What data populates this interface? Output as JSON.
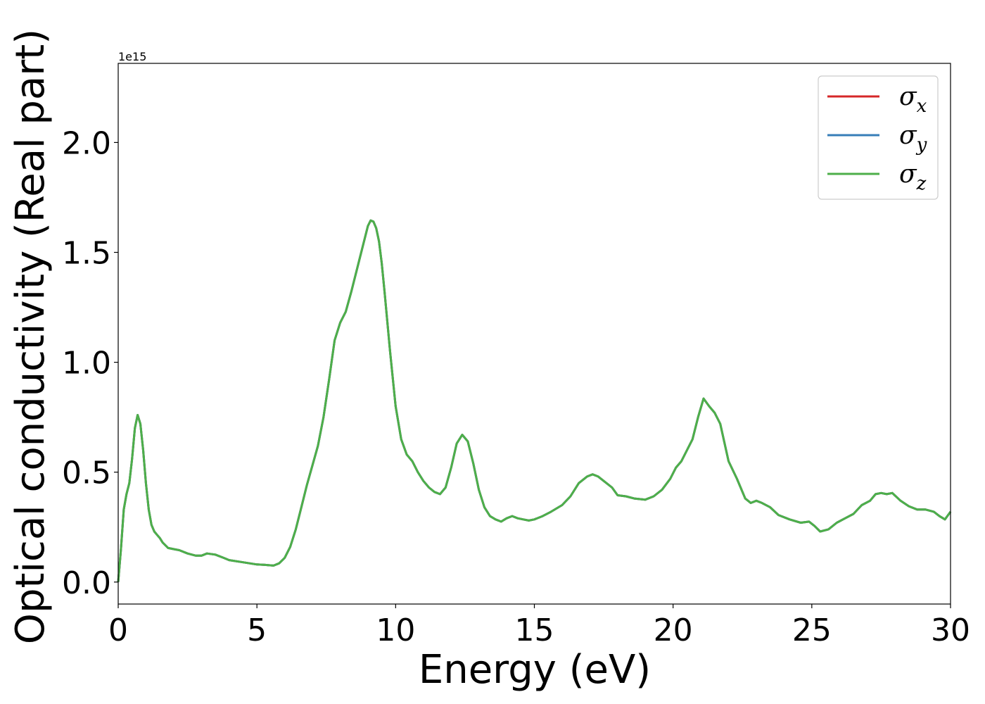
{
  "chart_data": {
    "type": "line",
    "xlabel": "Energy (eV)",
    "ylabel": "Optical conductivity (Real part)",
    "y_offset_label": "1e15",
    "xlim": [
      0,
      30
    ],
    "ylim": [
      -0.1,
      2.36
    ],
    "x_ticks": [
      0,
      5,
      10,
      15,
      20,
      25,
      30
    ],
    "x_tick_labels": [
      "0",
      "5",
      "10",
      "15",
      "20",
      "25",
      "30"
    ],
    "y_ticks": [
      0.0,
      0.5,
      1.0,
      1.5,
      2.0
    ],
    "y_tick_labels": [
      "0.0",
      "0.5",
      "1.0",
      "1.5",
      "2.0"
    ],
    "grid": false,
    "legend_position": "top-right",
    "x": [
      0,
      0.1,
      0.2,
      0.3,
      0.4,
      0.5,
      0.6,
      0.7,
      0.8,
      0.9,
      1.0,
      1.1,
      1.2,
      1.3,
      1.4,
      1.5,
      1.6,
      1.8,
      2.0,
      2.2,
      2.5,
      2.8,
      3.0,
      3.2,
      3.5,
      3.8,
      4.0,
      4.5,
      5.0,
      5.3,
      5.6,
      5.8,
      6.0,
      6.2,
      6.4,
      6.6,
      6.8,
      7.0,
      7.2,
      7.4,
      7.6,
      7.8,
      8.0,
      8.2,
      8.4,
      8.6,
      8.8,
      9.0,
      9.1,
      9.2,
      9.3,
      9.4,
      9.5,
      9.6,
      9.8,
      10.0,
      10.2,
      10.4,
      10.6,
      10.8,
      11.0,
      11.2,
      11.4,
      11.6,
      11.8,
      12.0,
      12.2,
      12.4,
      12.6,
      12.8,
      13.0,
      13.2,
      13.4,
      13.6,
      13.8,
      14.0,
      14.2,
      14.4,
      14.6,
      14.8,
      15.0,
      15.3,
      15.6,
      16.0,
      16.3,
      16.6,
      16.9,
      17.1,
      17.3,
      17.5,
      17.8,
      18.0,
      18.3,
      18.6,
      19.0,
      19.3,
      19.6,
      19.9,
      20.1,
      20.3,
      20.5,
      20.7,
      20.9,
      21.1,
      21.3,
      21.5,
      21.7,
      22.0,
      22.3,
      22.6,
      22.8,
      23.0,
      23.2,
      23.5,
      23.8,
      24.2,
      24.6,
      24.9,
      25.1,
      25.3,
      25.6,
      25.9,
      26.2,
      26.5,
      26.8,
      27.1,
      27.3,
      27.5,
      27.7,
      27.9,
      28.2,
      28.5,
      28.8,
      29.1,
      29.4,
      29.6,
      29.8,
      30.0
    ],
    "series": [
      {
        "name": "σx",
        "color": "#d62728",
        "y": [
          0.0,
          0.15,
          0.33,
          0.4,
          0.45,
          0.56,
          0.7,
          0.76,
          0.72,
          0.6,
          0.45,
          0.33,
          0.26,
          0.23,
          0.215,
          0.2,
          0.18,
          0.155,
          0.15,
          0.145,
          0.13,
          0.12,
          0.12,
          0.13,
          0.125,
          0.11,
          0.1,
          0.09,
          0.08,
          0.078,
          0.075,
          0.085,
          0.11,
          0.16,
          0.24,
          0.34,
          0.44,
          0.53,
          0.62,
          0.75,
          0.92,
          1.1,
          1.18,
          1.23,
          1.32,
          1.42,
          1.52,
          1.62,
          1.645,
          1.64,
          1.61,
          1.55,
          1.45,
          1.32,
          1.05,
          0.8,
          0.65,
          0.58,
          0.55,
          0.5,
          0.46,
          0.43,
          0.41,
          0.4,
          0.43,
          0.52,
          0.63,
          0.67,
          0.64,
          0.54,
          0.42,
          0.34,
          0.3,
          0.285,
          0.275,
          0.29,
          0.3,
          0.29,
          0.285,
          0.28,
          0.285,
          0.3,
          0.32,
          0.35,
          0.39,
          0.45,
          0.48,
          0.49,
          0.48,
          0.46,
          0.43,
          0.395,
          0.39,
          0.38,
          0.375,
          0.39,
          0.42,
          0.47,
          0.52,
          0.55,
          0.6,
          0.65,
          0.75,
          0.835,
          0.8,
          0.77,
          0.72,
          0.55,
          0.47,
          0.38,
          0.36,
          0.37,
          0.36,
          0.34,
          0.305,
          0.285,
          0.27,
          0.275,
          0.255,
          0.23,
          0.24,
          0.27,
          0.29,
          0.31,
          0.35,
          0.37,
          0.4,
          0.405,
          0.4,
          0.405,
          0.37,
          0.345,
          0.33,
          0.33,
          0.32,
          0.3,
          0.285,
          0.32
        ]
      },
      {
        "name": "σy",
        "color": "#377eb8",
        "y": [
          0.0,
          0.15,
          0.33,
          0.4,
          0.45,
          0.56,
          0.7,
          0.76,
          0.72,
          0.6,
          0.45,
          0.33,
          0.26,
          0.23,
          0.215,
          0.2,
          0.18,
          0.155,
          0.15,
          0.145,
          0.13,
          0.12,
          0.12,
          0.13,
          0.125,
          0.11,
          0.1,
          0.09,
          0.08,
          0.078,
          0.075,
          0.085,
          0.11,
          0.16,
          0.24,
          0.34,
          0.44,
          0.53,
          0.62,
          0.75,
          0.92,
          1.1,
          1.18,
          1.23,
          1.32,
          1.42,
          1.52,
          1.62,
          1.645,
          1.64,
          1.61,
          1.55,
          1.45,
          1.32,
          1.05,
          0.8,
          0.65,
          0.58,
          0.55,
          0.5,
          0.46,
          0.43,
          0.41,
          0.4,
          0.43,
          0.52,
          0.63,
          0.67,
          0.64,
          0.54,
          0.42,
          0.34,
          0.3,
          0.285,
          0.275,
          0.29,
          0.3,
          0.29,
          0.285,
          0.28,
          0.285,
          0.3,
          0.32,
          0.35,
          0.39,
          0.45,
          0.48,
          0.49,
          0.48,
          0.46,
          0.43,
          0.395,
          0.39,
          0.38,
          0.375,
          0.39,
          0.42,
          0.47,
          0.52,
          0.55,
          0.6,
          0.65,
          0.75,
          0.835,
          0.8,
          0.77,
          0.72,
          0.55,
          0.47,
          0.38,
          0.36,
          0.37,
          0.36,
          0.34,
          0.305,
          0.285,
          0.27,
          0.275,
          0.255,
          0.23,
          0.24,
          0.27,
          0.29,
          0.31,
          0.35,
          0.37,
          0.4,
          0.405,
          0.4,
          0.405,
          0.37,
          0.345,
          0.33,
          0.33,
          0.32,
          0.3,
          0.285,
          0.32
        ]
      },
      {
        "name": "σz",
        "color": "#4daf4a",
        "y": [
          0.0,
          0.15,
          0.33,
          0.4,
          0.45,
          0.56,
          0.7,
          0.76,
          0.72,
          0.6,
          0.45,
          0.33,
          0.26,
          0.23,
          0.215,
          0.2,
          0.18,
          0.155,
          0.15,
          0.145,
          0.13,
          0.12,
          0.12,
          0.13,
          0.125,
          0.11,
          0.1,
          0.09,
          0.08,
          0.078,
          0.075,
          0.085,
          0.11,
          0.16,
          0.24,
          0.34,
          0.44,
          0.53,
          0.62,
          0.75,
          0.92,
          1.1,
          1.18,
          1.23,
          1.32,
          1.42,
          1.52,
          1.62,
          1.645,
          1.64,
          1.61,
          1.55,
          1.45,
          1.32,
          1.05,
          0.8,
          0.65,
          0.58,
          0.55,
          0.5,
          0.46,
          0.43,
          0.41,
          0.4,
          0.43,
          0.52,
          0.63,
          0.67,
          0.64,
          0.54,
          0.42,
          0.34,
          0.3,
          0.285,
          0.275,
          0.29,
          0.3,
          0.29,
          0.285,
          0.28,
          0.285,
          0.3,
          0.32,
          0.35,
          0.39,
          0.45,
          0.48,
          0.49,
          0.48,
          0.46,
          0.43,
          0.395,
          0.39,
          0.38,
          0.375,
          0.39,
          0.42,
          0.47,
          0.52,
          0.55,
          0.6,
          0.65,
          0.75,
          0.835,
          0.8,
          0.77,
          0.72,
          0.55,
          0.47,
          0.38,
          0.36,
          0.37,
          0.36,
          0.34,
          0.305,
          0.285,
          0.27,
          0.275,
          0.255,
          0.23,
          0.24,
          0.27,
          0.29,
          0.31,
          0.35,
          0.37,
          0.4,
          0.405,
          0.4,
          0.405,
          0.37,
          0.345,
          0.33,
          0.33,
          0.32,
          0.3,
          0.285,
          0.32
        ]
      }
    ]
  }
}
